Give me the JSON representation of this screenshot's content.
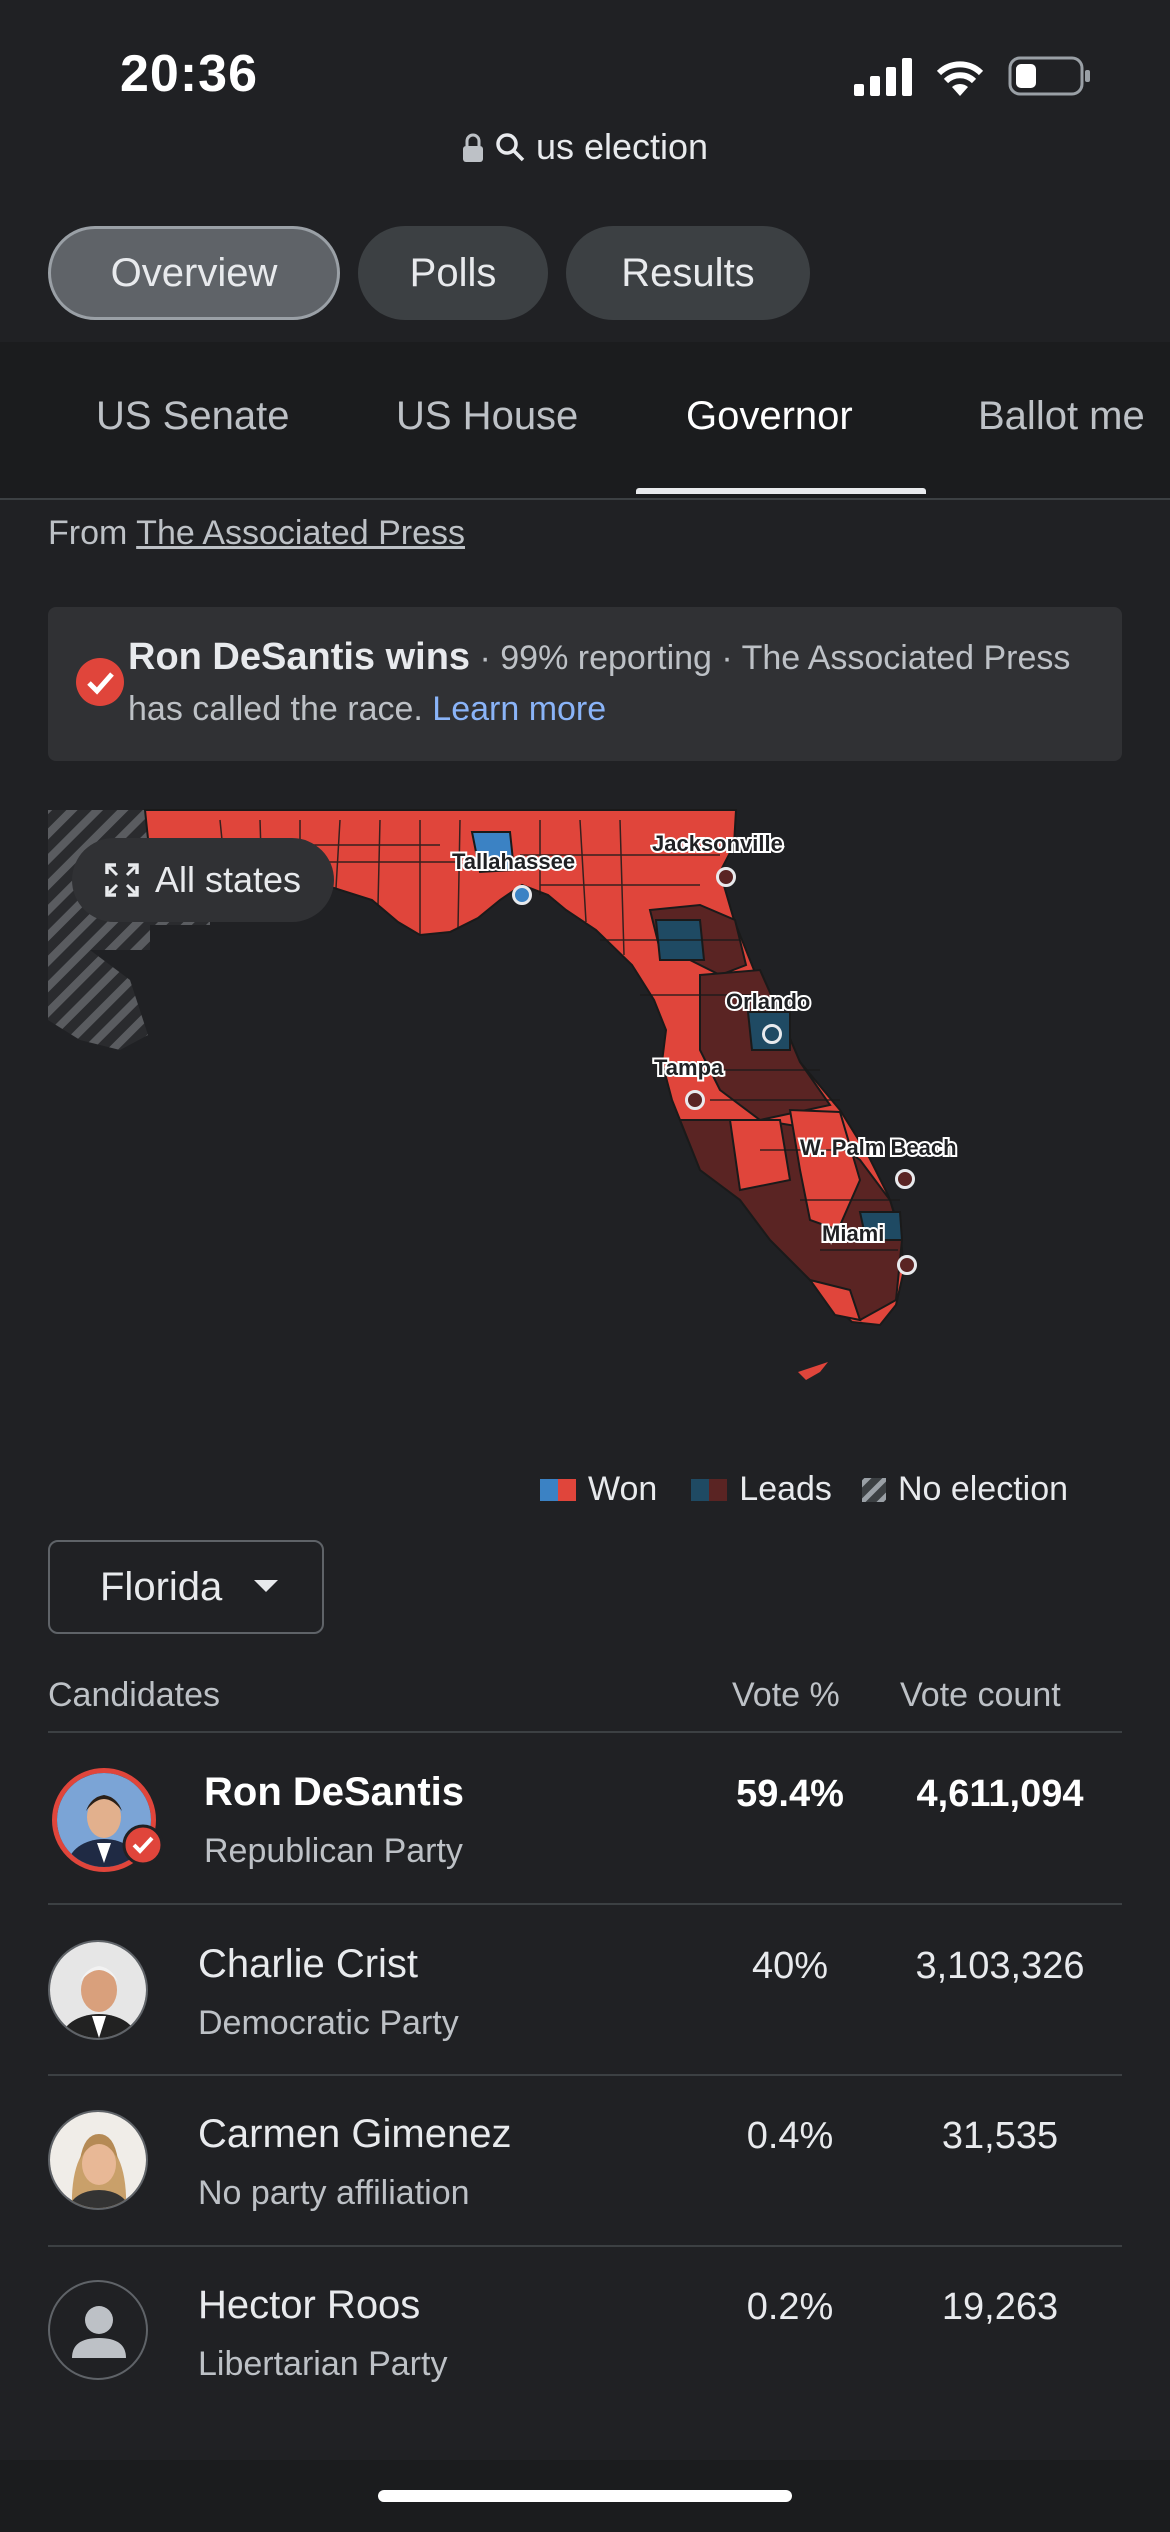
{
  "status_bar": {
    "time": "20:36"
  },
  "browser": {
    "query": "us election"
  },
  "chips": [
    "Overview",
    "Polls",
    "Results"
  ],
  "tabs": [
    "US Senate",
    "US House",
    "Governor",
    "Ballot me"
  ],
  "source": {
    "prefix": "From",
    "name": "The Associated Press"
  },
  "banner": {
    "headline": "Ron DeSantis wins",
    "detail": " · 99% reporting · The Associated Press has called the race. ",
    "link": "Learn more"
  },
  "map": {
    "all_states": "All states",
    "cities": [
      "Tallahassee",
      "Jacksonville",
      "Orlando",
      "Tampa",
      "W. Palm Beach",
      "Miami"
    ]
  },
  "legend": {
    "won": "Won",
    "leads": "Leads",
    "no_election": "No election"
  },
  "state_select": "Florida",
  "table": {
    "headers": {
      "candidates": "Candidates",
      "vote_pct": "Vote %",
      "vote_count": "Vote count"
    },
    "rows": [
      {
        "name": "Ron DeSantis",
        "party": "Republican Party",
        "pct": "59.4%",
        "count": "4,611,094",
        "winner": true
      },
      {
        "name": "Charlie Crist",
        "party": "Democratic Party",
        "pct": "40%",
        "count": "3,103,326"
      },
      {
        "name": "Carmen Gimenez",
        "party": "No party affiliation",
        "pct": "0.4%",
        "count": "31,535"
      },
      {
        "name": "Hector Roos",
        "party": "Libertarian Party",
        "pct": "0.2%",
        "count": "19,263"
      }
    ]
  },
  "colors": {
    "background": "#202124",
    "republican_won": "#e0453b",
    "republican_leads": "#5a2423",
    "democrat_won": "#3b82c4",
    "democrat_leads": "#1f4a63",
    "link": "#8ab4f8"
  }
}
